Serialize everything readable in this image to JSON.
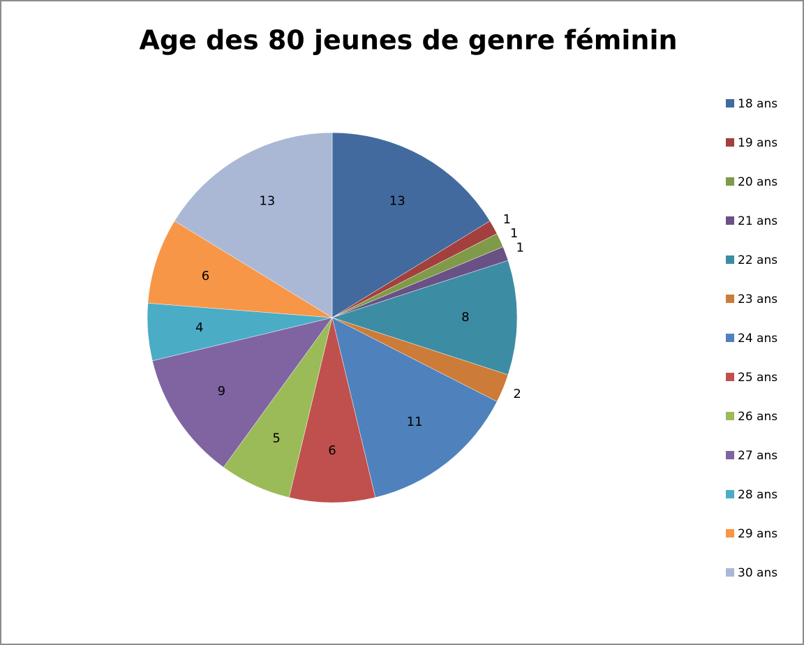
{
  "chart_data": {
    "type": "pie",
    "title": "Age des 80 jeunes de genre féminin",
    "categories": [
      "18 ans",
      "19 ans",
      "20 ans",
      "21 ans",
      "22 ans",
      "23 ans",
      "24 ans",
      "25 ans",
      "26 ans",
      "27 ans",
      "28 ans",
      "29 ans",
      "30 ans"
    ],
    "values": [
      13,
      1,
      1,
      1,
      8,
      2,
      11,
      6,
      5,
      9,
      4,
      6,
      13
    ],
    "colors": [
      "#426a9e",
      "#a3403d",
      "#7f9a48",
      "#695185",
      "#3c8da3",
      "#cc7b38",
      "#4f81bd",
      "#c0504d",
      "#9bbb59",
      "#8064a2",
      "#4bacc6",
      "#f79646",
      "#aab8d6"
    ],
    "legend": "right"
  }
}
